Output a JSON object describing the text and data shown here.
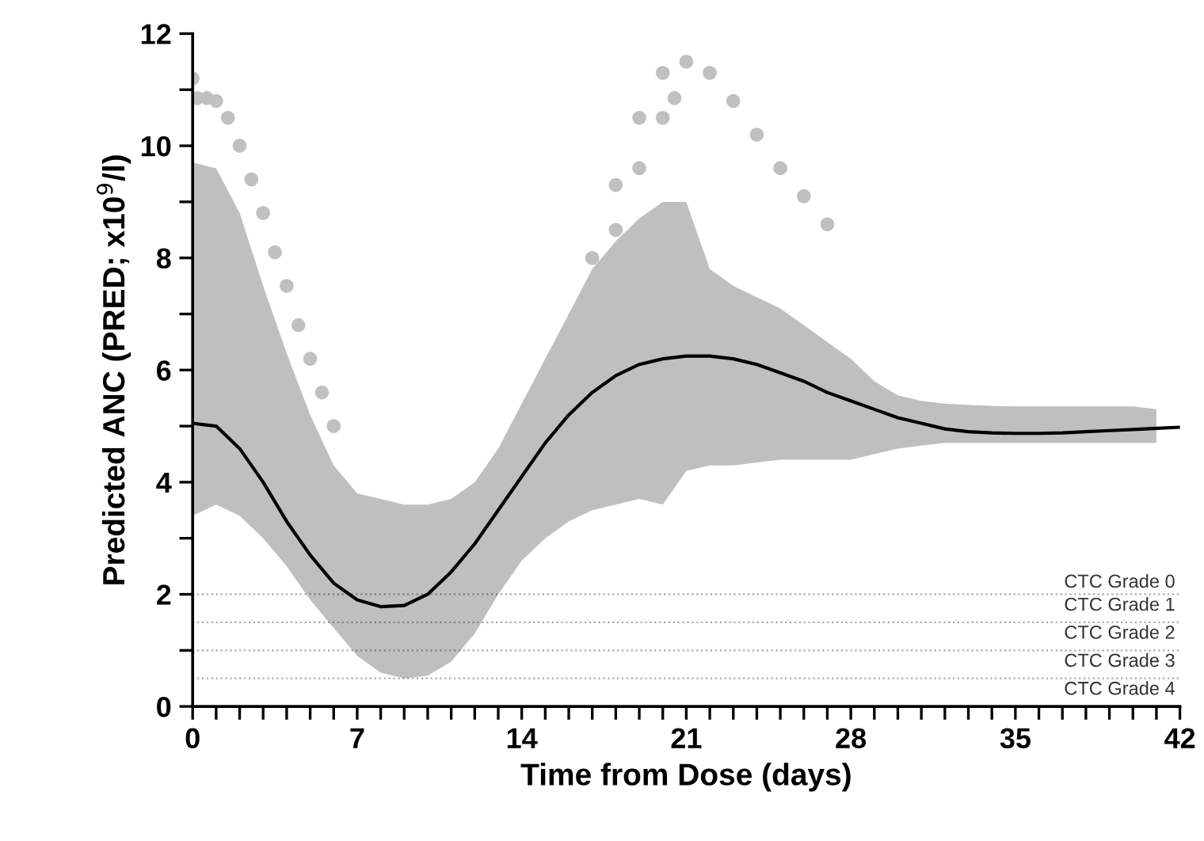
{
  "chart_data": {
    "type": "line",
    "xlabel": "Time from Dose (days)",
    "ylabel": "Predicted ANC (PRED; x10$^{9}$/l)",
    "xlim": [
      0,
      42
    ],
    "ylim": [
      0,
      12
    ],
    "xticks": [
      0,
      {
        "value": 1,
        "label": null
      },
      {
        "value": 2,
        "label": null
      },
      {
        "value": 3,
        "label": null
      },
      {
        "value": 4,
        "label": null
      },
      {
        "value": 5,
        "label": null
      },
      {
        "value": 6,
        "label": null
      },
      7,
      {
        "value": 8,
        "label": null
      },
      {
        "value": 9,
        "label": null
      },
      {
        "value": 10,
        "label": null
      },
      {
        "value": 11,
        "label": null
      },
      {
        "value": 12,
        "label": null
      },
      {
        "value": 13,
        "label": null
      },
      14,
      {
        "value": 15,
        "label": null
      },
      {
        "value": 16,
        "label": null
      },
      {
        "value": 17,
        "label": null
      },
      {
        "value": 18,
        "label": null
      },
      {
        "value": 19,
        "label": null
      },
      {
        "value": 20,
        "label": null
      },
      21,
      {
        "value": 22,
        "label": null
      },
      {
        "value": 23,
        "label": null
      },
      {
        "value": 24,
        "label": null
      },
      {
        "value": 25,
        "label": null
      },
      {
        "value": 26,
        "label": null
      },
      {
        "value": 27,
        "label": null
      },
      28,
      {
        "value": 29,
        "label": null
      },
      {
        "value": 30,
        "label": null
      },
      {
        "value": 31,
        "label": null
      },
      {
        "value": 32,
        "label": null
      },
      {
        "value": 33,
        "label": null
      },
      {
        "value": 34,
        "label": null
      },
      35,
      {
        "value": 36,
        "label": null
      },
      {
        "value": 37,
        "label": null
      },
      {
        "value": 38,
        "label": null
      },
      {
        "value": 39,
        "label": null
      },
      {
        "value": 40,
        "label": null
      },
      {
        "value": 41,
        "label": null
      },
      42
    ],
    "yticks": [
      0,
      {
        "value": 1,
        "label": null
      },
      2,
      {
        "value": 3,
        "label": null
      },
      4,
      {
        "value": 5,
        "label": null
      },
      6,
      {
        "value": 7,
        "label": null
      },
      8,
      {
        "value": 9,
        "label": null
      },
      10,
      {
        "value": 11,
        "label": null
      },
      12
    ],
    "grid": false,
    "legend": false,
    "series": [
      {
        "color": "#000000",
        "line_style": "solid",
        "marker": "none",
        "x": [
          0,
          1,
          2,
          3,
          4,
          5,
          6,
          7,
          8,
          9,
          10,
          11,
          12,
          13,
          14,
          15,
          16,
          17,
          18,
          19,
          20,
          21,
          22,
          23,
          24,
          25,
          26,
          27,
          28,
          29,
          30,
          31,
          32,
          33,
          34,
          35,
          36,
          37,
          38,
          39,
          40,
          41,
          42
        ],
        "values": [
          5.05,
          5.0,
          4.6,
          4.0,
          3.3,
          2.7,
          2.2,
          1.9,
          1.78,
          1.8,
          2.0,
          2.4,
          2.9,
          3.5,
          4.1,
          4.7,
          5.2,
          5.6,
          5.9,
          6.1,
          6.2,
          6.25,
          6.25,
          6.2,
          6.1,
          5.95,
          5.8,
          5.6,
          5.45,
          5.3,
          5.15,
          5.05,
          4.95,
          4.9,
          4.88,
          4.87,
          4.87,
          4.88,
          4.9,
          4.92,
          4.94,
          4.96,
          4.98
        ],
        "lower": [
          3.4,
          3.6,
          3.4,
          3.0,
          2.5,
          1.9,
          1.4,
          0.9,
          0.6,
          0.5,
          0.55,
          0.8,
          1.3,
          2.0,
          2.6,
          3.0,
          3.3,
          3.5,
          3.6,
          3.7,
          3.6,
          4.2,
          4.3,
          4.3,
          4.35,
          4.4,
          4.4,
          4.4,
          4.4,
          4.5,
          4.6,
          4.65,
          4.7,
          4.7,
          4.7,
          4.7,
          4.7,
          4.7,
          4.7,
          4.7,
          4.7,
          4.7,
          null
        ],
        "upper": [
          9.7,
          9.6,
          8.8,
          7.5,
          6.3,
          5.2,
          4.3,
          3.8,
          3.7,
          3.6,
          3.6,
          3.7,
          4.0,
          4.6,
          5.4,
          6.2,
          7.0,
          7.8,
          8.3,
          8.7,
          9.0,
          9.0,
          7.8,
          7.5,
          7.3,
          7.1,
          6.8,
          6.5,
          6.2,
          5.8,
          5.55,
          5.45,
          5.4,
          5.38,
          5.36,
          5.35,
          5.35,
          5.35,
          5.35,
          5.35,
          5.35,
          5.3,
          null
        ]
      },
      {
        "type": "scatter",
        "color": "#c0c0c0",
        "marker": "circle",
        "x": [
          0,
          0.2,
          0.6,
          1,
          1.5,
          2,
          2.5,
          3,
          3.5,
          4,
          4.5,
          5,
          5.5,
          6,
          17,
          18,
          19,
          20,
          21,
          22,
          23,
          24,
          25,
          26,
          27,
          18,
          19,
          20,
          20.5
        ],
        "values": [
          11.2,
          10.85,
          10.85,
          10.8,
          10.5,
          10.0,
          9.4,
          8.8,
          8.1,
          7.5,
          6.8,
          6.2,
          5.6,
          5.0,
          8.0,
          9.3,
          10.5,
          11.3,
          11.5,
          11.3,
          10.8,
          10.2,
          9.6,
          9.1,
          8.6,
          8.5,
          9.6,
          10.5,
          10.85
        ]
      }
    ],
    "ref_lines": [
      {
        "axis": "y",
        "value": 2,
        "label": "CTC Grade 1",
        "color": "#aaaaaa",
        "line_style": "dotted"
      },
      {
        "axis": "y",
        "value": 1.5,
        "label": "CTC Grade 2",
        "color": "#aaaaaa",
        "line_style": "dotted"
      },
      {
        "axis": "y",
        "value": 1,
        "label": "CTC Grade 3",
        "color": "#aaaaaa",
        "line_style": "dotted"
      },
      {
        "axis": "y",
        "value": 0.5,
        "label": "CTC Grade 4",
        "color": "#aaaaaa",
        "line_style": "dotted"
      }
    ],
    "annotations": [
      {
        "text": "CTC Grade 0",
        "x": 42,
        "y": 2
      }
    ]
  }
}
